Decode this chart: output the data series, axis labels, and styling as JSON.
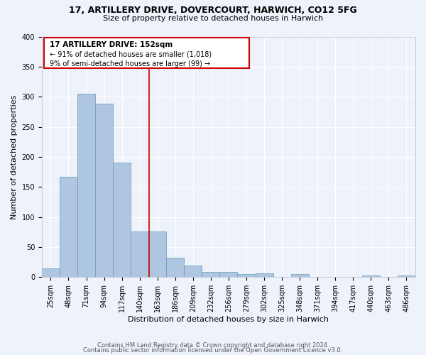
{
  "title_line1": "17, ARTILLERY DRIVE, DOVERCOURT, HARWICH, CO12 5FG",
  "title_line2": "Size of property relative to detached houses in Harwich",
  "xlabel": "Distribution of detached houses by size in Harwich",
  "ylabel": "Number of detached properties",
  "categories": [
    "25sqm",
    "48sqm",
    "71sqm",
    "94sqm",
    "117sqm",
    "140sqm",
    "163sqm",
    "186sqm",
    "209sqm",
    "232sqm",
    "256sqm",
    "279sqm",
    "302sqm",
    "325sqm",
    "348sqm",
    "371sqm",
    "394sqm",
    "417sqm",
    "440sqm",
    "463sqm",
    "486sqm"
  ],
  "values": [
    15,
    167,
    305,
    288,
    191,
    76,
    76,
    32,
    19,
    9,
    9,
    5,
    6,
    0,
    5,
    0,
    0,
    0,
    3,
    0,
    3
  ],
  "bar_color": "#aec6df",
  "bar_edge_color": "#6699bb",
  "property_label": "17 ARTILLERY DRIVE: 152sqm",
  "annotation_line1": "← 91% of detached houses are smaller (1,018)",
  "annotation_line2": "9% of semi-detached houses are larger (99) →",
  "vline_color": "#cc0000",
  "annotation_box_edge_color": "#cc0000",
  "background_color": "#eef2fa",
  "grid_color": "#ffffff",
  "footer_line1": "Contains HM Land Registry data © Crown copyright and database right 2024.",
  "footer_line2": "Contains public sector information licensed under the Open Government Licence v3.0.",
  "ylim": [
    0,
    400
  ],
  "bar_width": 1.0,
  "title_fontsize": 9,
  "subtitle_fontsize": 8,
  "tick_fontsize": 7,
  "ylabel_fontsize": 8,
  "xlabel_fontsize": 8,
  "footer_fontsize": 6
}
